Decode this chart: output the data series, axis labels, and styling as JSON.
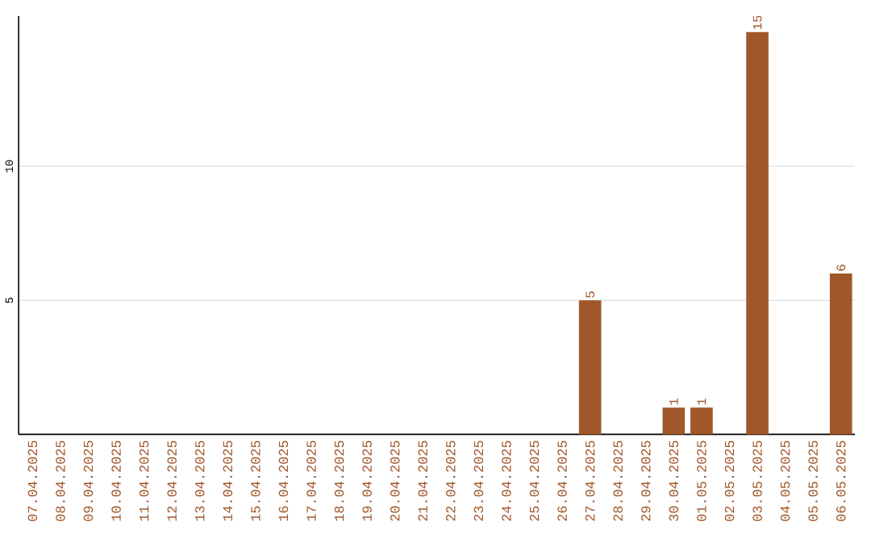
{
  "chart_data": {
    "type": "bar",
    "categories": [
      "07.04.2025",
      "08.04.2025",
      "09.04.2025",
      "10.04.2025",
      "11.04.2025",
      "12.04.2025",
      "13.04.2025",
      "14.04.2025",
      "15.04.2025",
      "16.04.2025",
      "17.04.2025",
      "18.04.2025",
      "19.04.2025",
      "20.04.2025",
      "21.04.2025",
      "22.04.2025",
      "23.04.2025",
      "24.04.2025",
      "25.04.2025",
      "26.04.2025",
      "27.04.2025",
      "28.04.2025",
      "29.04.2025",
      "30.04.2025",
      "01.05.2025",
      "02.05.2025",
      "03.05.2025",
      "04.05.2025",
      "05.05.2025",
      "06.05.2025"
    ],
    "values": [
      0,
      0,
      0,
      0,
      0,
      0,
      0,
      0,
      0,
      0,
      0,
      0,
      0,
      0,
      0,
      0,
      0,
      0,
      0,
      0,
      5,
      0,
      0,
      1,
      1,
      0,
      15,
      0,
      0,
      6
    ],
    "value_labels": [
      null,
      null,
      null,
      null,
      null,
      null,
      null,
      null,
      null,
      null,
      null,
      null,
      null,
      null,
      null,
      null,
      null,
      null,
      null,
      null,
      "5",
      null,
      null,
      "1",
      "1",
      null,
      "15",
      null,
      null,
      "6"
    ],
    "color": "#a0582a",
    "ylim": [
      0,
      15.6
    ],
    "yticks": [
      5,
      10
    ],
    "grid": "y"
  }
}
